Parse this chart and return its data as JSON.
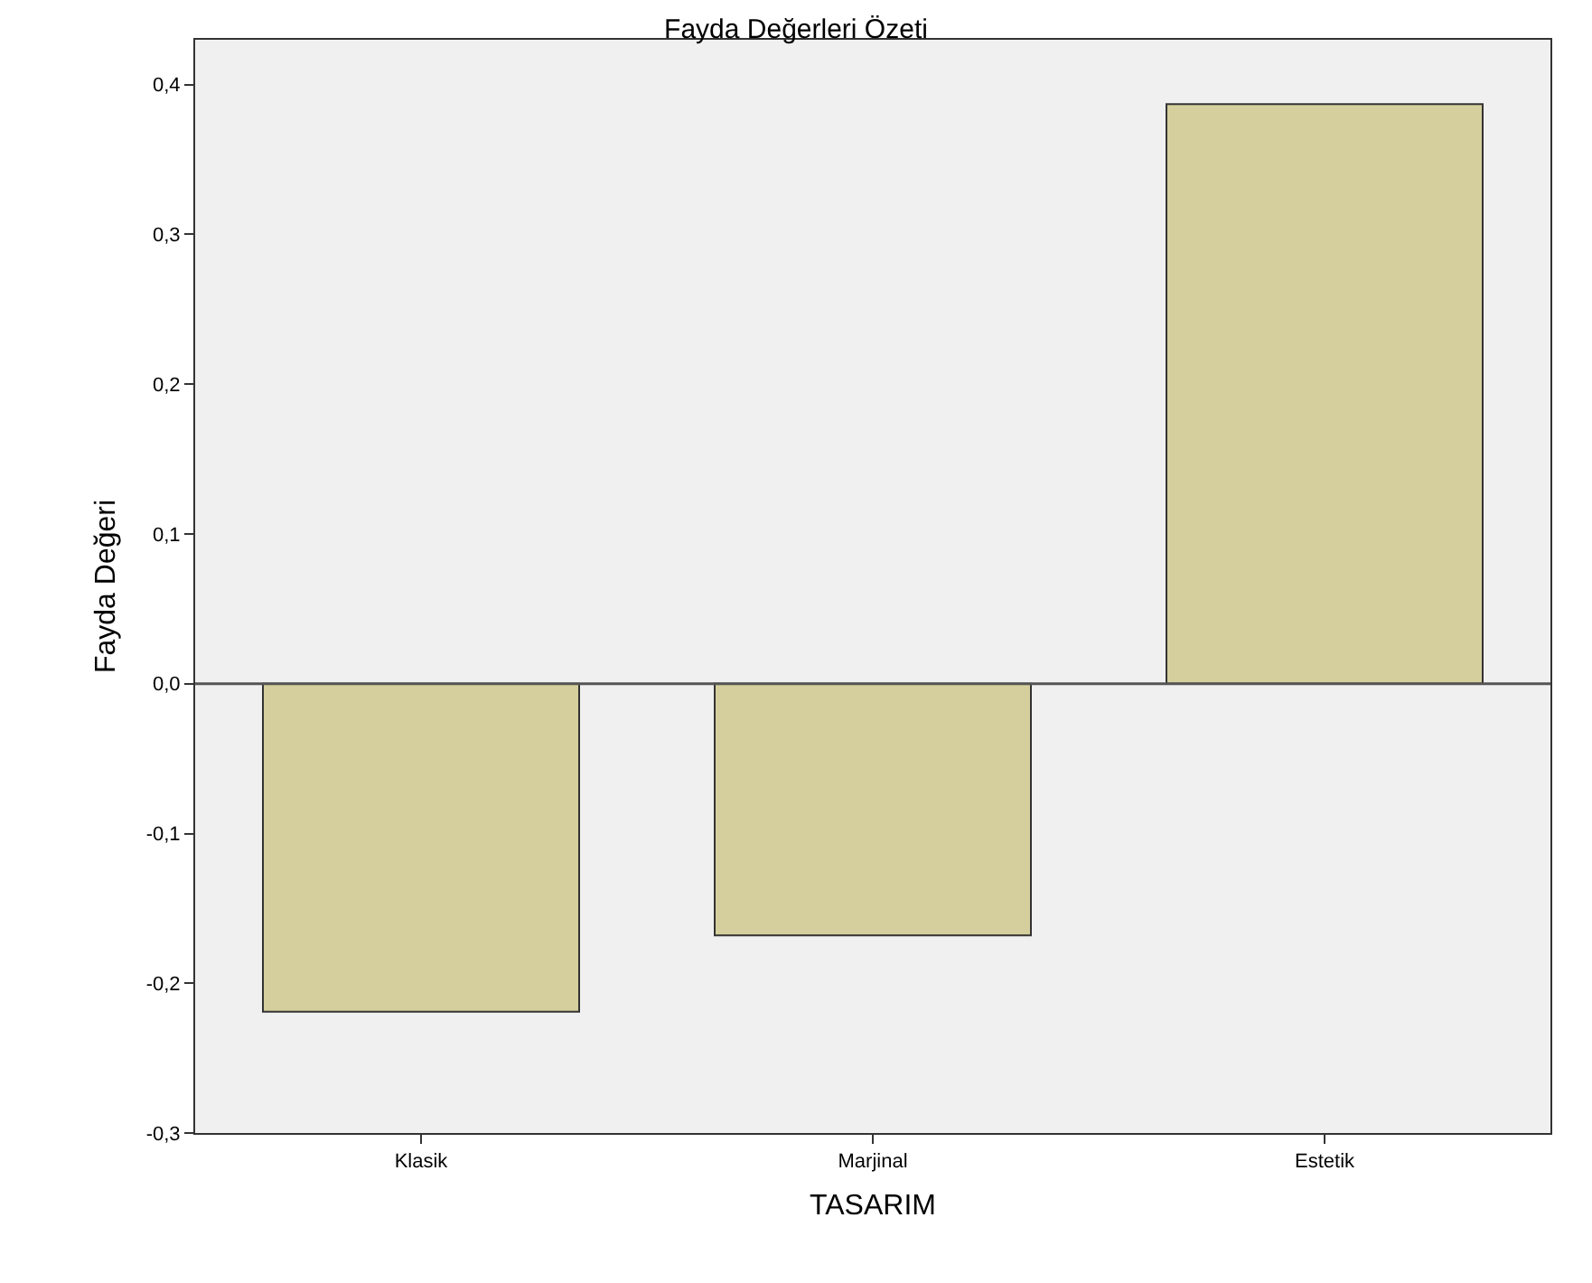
{
  "chart_data": {
    "type": "bar",
    "title": "Fayda Değerleri Özeti",
    "xlabel": "TASARIM",
    "ylabel": "Fayda Değeri",
    "categories": [
      "Klasik",
      "Marjinal",
      "Estetik"
    ],
    "values": [
      -0.219,
      -0.168,
      0.387
    ],
    "color": "#d4cf9c",
    "ylim": [
      -0.3,
      0.43
    ],
    "yticks": [
      {
        "value": -0.3,
        "label": "-0,3"
      },
      {
        "value": -0.2,
        "label": "-0,2"
      },
      {
        "value": -0.1,
        "label": "-0,1"
      },
      {
        "value": 0.0,
        "label": "0,0"
      },
      {
        "value": 0.1,
        "label": "0,1"
      },
      {
        "value": 0.2,
        "label": "0,2"
      },
      {
        "value": 0.3,
        "label": "0,3"
      },
      {
        "value": 0.4,
        "label": "0,4"
      }
    ],
    "ref_lines": [
      {
        "axis": "y",
        "value": 0,
        "color": "#555555"
      }
    ],
    "grid": false,
    "legend": false
  }
}
